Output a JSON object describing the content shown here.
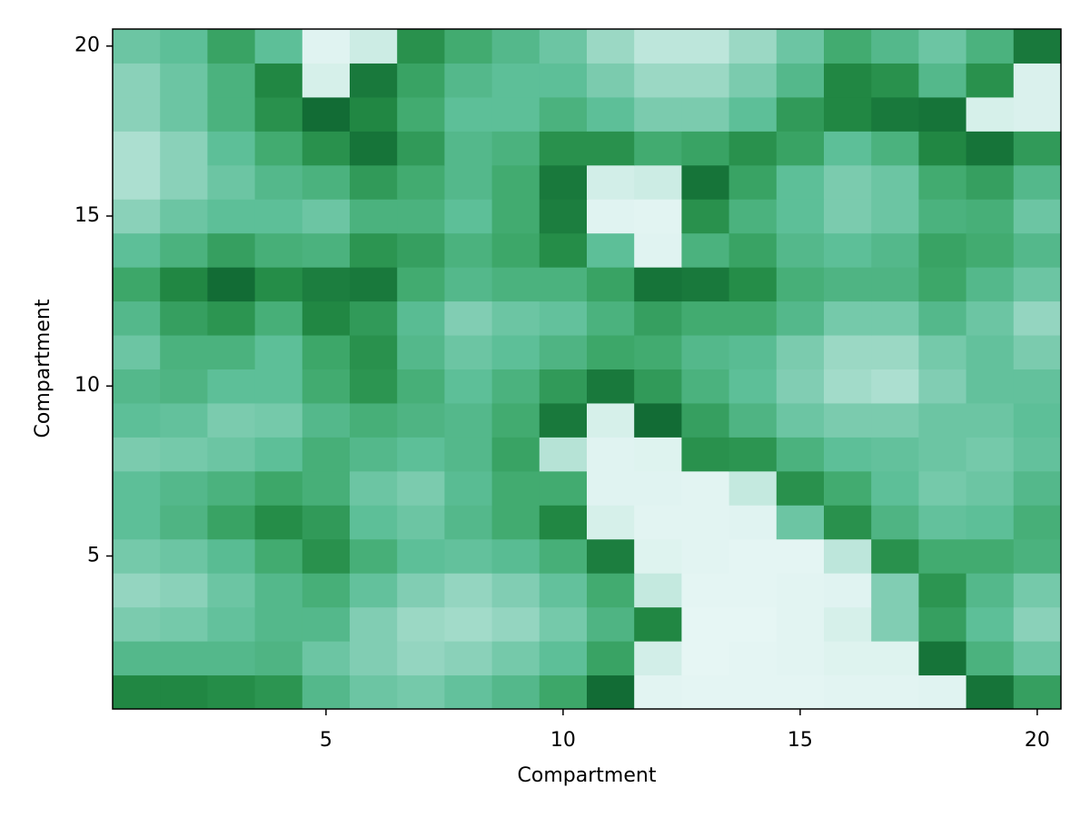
{
  "chart_data": {
    "type": "heatmap",
    "xlabel": "Compartment",
    "ylabel": "Compartment",
    "x": [
      1,
      2,
      3,
      4,
      5,
      6,
      7,
      8,
      9,
      10,
      11,
      12,
      13,
      14,
      15,
      16,
      17,
      18,
      19,
      20
    ],
    "y": [
      1,
      2,
      3,
      4,
      5,
      6,
      7,
      8,
      9,
      10,
      11,
      12,
      13,
      14,
      15,
      16,
      17,
      18,
      19,
      20
    ],
    "values": [
      [
        0.85,
        0.85,
        0.82,
        0.78,
        0.55,
        0.45,
        0.42,
        0.48,
        0.55,
        0.68,
        0.95,
        0.04,
        0.03,
        0.03,
        0.03,
        0.04,
        0.04,
        0.05,
        0.92,
        0.72
      ],
      [
        0.55,
        0.55,
        0.55,
        0.58,
        0.45,
        0.38,
        0.32,
        0.35,
        0.42,
        0.5,
        0.7,
        0.12,
        0.02,
        0.03,
        0.04,
        0.06,
        0.06,
        0.92,
        0.6,
        0.45
      ],
      [
        0.4,
        0.42,
        0.48,
        0.55,
        0.55,
        0.38,
        0.3,
        0.28,
        0.32,
        0.42,
        0.58,
        0.85,
        0.02,
        0.02,
        0.04,
        0.1,
        0.38,
        0.72,
        0.5,
        0.35
      ],
      [
        0.32,
        0.35,
        0.45,
        0.55,
        0.62,
        0.48,
        0.38,
        0.32,
        0.38,
        0.48,
        0.65,
        0.18,
        0.03,
        0.03,
        0.04,
        0.05,
        0.38,
        0.78,
        0.55,
        0.42
      ],
      [
        0.42,
        0.45,
        0.52,
        0.65,
        0.8,
        0.62,
        0.5,
        0.48,
        0.52,
        0.62,
        0.88,
        0.06,
        0.04,
        0.03,
        0.03,
        0.2,
        0.8,
        0.65,
        0.65,
        0.6
      ],
      [
        0.5,
        0.58,
        0.7,
        0.82,
        0.75,
        0.5,
        0.45,
        0.55,
        0.65,
        0.85,
        0.1,
        0.04,
        0.04,
        0.05,
        0.45,
        0.8,
        0.58,
        0.48,
        0.5,
        0.62
      ],
      [
        0.5,
        0.55,
        0.6,
        0.68,
        0.62,
        0.45,
        0.4,
        0.52,
        0.65,
        0.65,
        0.05,
        0.05,
        0.04,
        0.18,
        0.8,
        0.65,
        0.5,
        0.42,
        0.45,
        0.55
      ],
      [
        0.4,
        0.42,
        0.45,
        0.5,
        0.62,
        0.55,
        0.5,
        0.55,
        0.7,
        0.22,
        0.05,
        0.06,
        0.8,
        0.78,
        0.6,
        0.5,
        0.48,
        0.45,
        0.42,
        0.48
      ],
      [
        0.5,
        0.48,
        0.4,
        0.42,
        0.55,
        0.62,
        0.58,
        0.55,
        0.65,
        0.9,
        0.1,
        0.95,
        0.72,
        0.58,
        0.45,
        0.4,
        0.4,
        0.45,
        0.45,
        0.5
      ],
      [
        0.55,
        0.58,
        0.5,
        0.5,
        0.65,
        0.78,
        0.62,
        0.5,
        0.6,
        0.75,
        0.9,
        0.75,
        0.6,
        0.5,
        0.38,
        0.28,
        0.25,
        0.38,
        0.48,
        0.48
      ],
      [
        0.45,
        0.6,
        0.6,
        0.5,
        0.68,
        0.8,
        0.55,
        0.45,
        0.5,
        0.58,
        0.68,
        0.65,
        0.55,
        0.52,
        0.4,
        0.3,
        0.3,
        0.42,
        0.48,
        0.4
      ],
      [
        0.55,
        0.72,
        0.78,
        0.62,
        0.85,
        0.75,
        0.52,
        0.38,
        0.45,
        0.48,
        0.6,
        0.72,
        0.65,
        0.65,
        0.55,
        0.42,
        0.42,
        0.55,
        0.45,
        0.32
      ],
      [
        0.68,
        0.85,
        0.95,
        0.82,
        0.88,
        0.9,
        0.65,
        0.55,
        0.6,
        0.6,
        0.7,
        0.92,
        0.9,
        0.82,
        0.62,
        0.58,
        0.58,
        0.68,
        0.55,
        0.45
      ],
      [
        0.5,
        0.6,
        0.72,
        0.62,
        0.6,
        0.78,
        0.72,
        0.6,
        0.68,
        0.82,
        0.5,
        0.05,
        0.6,
        0.7,
        0.55,
        0.5,
        0.55,
        0.7,
        0.65,
        0.55
      ],
      [
        0.35,
        0.45,
        0.5,
        0.5,
        0.45,
        0.6,
        0.6,
        0.5,
        0.65,
        0.88,
        0.05,
        0.04,
        0.8,
        0.6,
        0.5,
        0.4,
        0.45,
        0.6,
        0.62,
        0.45
      ],
      [
        0.25,
        0.35,
        0.45,
        0.55,
        0.6,
        0.75,
        0.65,
        0.55,
        0.65,
        0.9,
        0.12,
        0.15,
        0.92,
        0.7,
        0.5,
        0.4,
        0.45,
        0.65,
        0.72,
        0.55
      ],
      [
        0.25,
        0.35,
        0.5,
        0.65,
        0.8,
        0.92,
        0.75,
        0.55,
        0.6,
        0.8,
        0.8,
        0.65,
        0.7,
        0.8,
        0.7,
        0.5,
        0.6,
        0.85,
        0.92,
        0.75
      ],
      [
        0.35,
        0.45,
        0.6,
        0.8,
        0.95,
        0.85,
        0.65,
        0.5,
        0.5,
        0.6,
        0.5,
        0.4,
        0.4,
        0.5,
        0.75,
        0.85,
        0.9,
        0.92,
        0.1,
        0.08
      ],
      [
        0.35,
        0.45,
        0.6,
        0.85,
        0.1,
        0.9,
        0.7,
        0.55,
        0.5,
        0.5,
        0.4,
        0.3,
        0.3,
        0.4,
        0.55,
        0.85,
        0.8,
        0.55,
        0.8,
        0.08
      ],
      [
        0.45,
        0.5,
        0.7,
        0.5,
        0.05,
        0.15,
        0.8,
        0.65,
        0.55,
        0.45,
        0.3,
        0.2,
        0.2,
        0.3,
        0.45,
        0.65,
        0.55,
        0.45,
        0.6,
        0.9
      ]
    ],
    "clim": [
      0,
      1
    ],
    "colormap": [
      "#eaf7f7",
      "#c9ebe2",
      "#8fd3bd",
      "#5dbf98",
      "#3fa96c",
      "#238b45",
      "#0a5e2e"
    ],
    "xlim": [
      0.5,
      20.5
    ],
    "ylim": [
      0.5,
      20.5
    ],
    "xticks": [
      5,
      10,
      15,
      20
    ],
    "yticks": [
      5,
      10,
      15,
      20
    ]
  }
}
